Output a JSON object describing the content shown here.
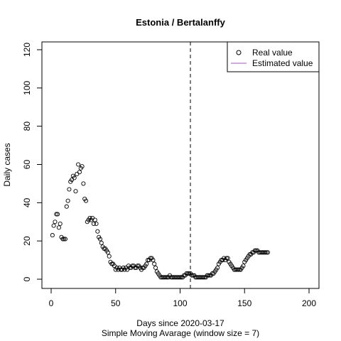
{
  "chart_data": {
    "type": "scatter",
    "title": "Estonia / Bertalanffy",
    "xlabel": "Days since 2020-03-17",
    "sub": "Simple Moving Avarage (window size = 7)",
    "ylabel": "Daily cases",
    "xlim": [
      0,
      200
    ],
    "ylim": [
      0,
      120
    ],
    "xticks": [
      0,
      50,
      100,
      150,
      200
    ],
    "yticks": [
      0,
      20,
      40,
      60,
      80,
      100,
      120
    ],
    "vline_x": 108,
    "legend_position": "top-right",
    "legend": [
      {
        "label": "Real value",
        "kind": "point",
        "color": "#000000"
      },
      {
        "label": "Estimated value",
        "kind": "line",
        "color": "#9b59b6"
      }
    ],
    "series": [
      {
        "name": "Real value",
        "marker": "open-circle",
        "color": "#000000",
        "x": [
          1,
          2,
          3,
          4,
          5,
          6,
          7,
          8,
          9,
          10,
          11,
          12,
          13,
          14,
          15,
          16,
          17,
          18,
          19,
          20,
          21,
          22,
          23,
          24,
          25,
          26,
          27,
          28,
          29,
          30,
          31,
          32,
          33,
          34,
          35,
          36,
          37,
          38,
          39,
          40,
          41,
          42,
          43,
          44,
          45,
          46,
          47,
          48,
          49,
          50,
          51,
          52,
          53,
          54,
          55,
          56,
          57,
          58,
          59,
          60,
          61,
          62,
          63,
          64,
          65,
          66,
          67,
          68,
          69,
          70,
          71,
          72,
          73,
          74,
          75,
          76,
          77,
          78,
          79,
          80,
          81,
          82,
          83,
          84,
          85,
          86,
          87,
          88,
          89,
          90,
          91,
          92,
          93,
          94,
          95,
          96,
          97,
          98,
          99,
          100,
          101,
          102,
          103,
          104,
          105,
          106,
          107,
          108,
          109,
          110,
          111,
          112,
          113,
          114,
          115,
          116,
          117,
          118,
          119,
          120,
          121,
          122,
          123,
          124,
          125,
          126,
          127,
          128,
          129,
          130,
          131,
          132,
          133,
          134,
          135,
          136,
          137,
          138,
          139,
          140,
          141,
          142,
          143,
          144,
          145,
          146,
          147,
          148,
          149,
          150,
          151,
          152,
          153,
          154,
          155,
          156,
          157,
          158,
          159,
          160,
          161,
          162,
          163,
          164,
          165,
          166,
          167,
          168
        ],
        "y": [
          23,
          28,
          30,
          34,
          34,
          27,
          29,
          22,
          21,
          21,
          21,
          38,
          41,
          47,
          51,
          52,
          54,
          53,
          46,
          55,
          60,
          56,
          58,
          59,
          50,
          42,
          41,
          30,
          31,
          32,
          31,
          32,
          29,
          31,
          29,
          25,
          22,
          21,
          19,
          17,
          16,
          16,
          15,
          14,
          12,
          9,
          8,
          8,
          7,
          5,
          6,
          5,
          6,
          5,
          5,
          6,
          5,
          6,
          5,
          7,
          6,
          6,
          7,
          7,
          6,
          6,
          7,
          7,
          6,
          5,
          6,
          6,
          7,
          8,
          10,
          10,
          11,
          11,
          10,
          8,
          6,
          4,
          3,
          2,
          1,
          1,
          1,
          1,
          1,
          1,
          1,
          2,
          1,
          1,
          1,
          1,
          1,
          1,
          1,
          1,
          1,
          1,
          2,
          2,
          3,
          3,
          3,
          3,
          2,
          2,
          2,
          1,
          1,
          1,
          1,
          1,
          1,
          1,
          1,
          1,
          2,
          2,
          2,
          2,
          3,
          3,
          4,
          5,
          6,
          8,
          9,
          10,
          10,
          11,
          10,
          11,
          11,
          9,
          8,
          7,
          6,
          5,
          5,
          5,
          5,
          5,
          5,
          6,
          7,
          9,
          10,
          11,
          12,
          13,
          13,
          14,
          14,
          15,
          15,
          15,
          14,
          14,
          14,
          14,
          14,
          14,
          14,
          14
        ]
      }
    ]
  }
}
